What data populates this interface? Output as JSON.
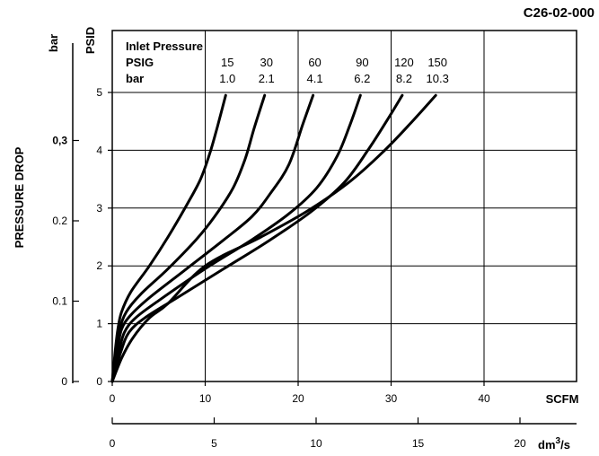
{
  "figure_code": "C26-02-000",
  "chart_data": {
    "type": "line",
    "xlabel": "SCFM",
    "xlim": [
      0,
      50
    ],
    "xticks": [
      0,
      10,
      20,
      30,
      40
    ],
    "x2label": "dm³/s",
    "x2_label_base": "dm",
    "x2_label_sup": "3",
    "x2_label_tail": "/s",
    "x2ticks": [
      0,
      5,
      10,
      15,
      20
    ],
    "ylabel": "PSID",
    "ylim": [
      0,
      5.5
    ],
    "yticks": [
      0,
      1,
      2,
      3,
      4,
      5
    ],
    "y2label": "bar",
    "y2ticks": [
      {
        "label": "0",
        "value": 0
      },
      {
        "label": "0.1",
        "value": 0.1
      },
      {
        "label": "0.2",
        "value": 0.2
      },
      {
        "label": "0,3",
        "value": 0.3
      }
    ],
    "axis_title": "PRESSURE DROP",
    "grid": true,
    "legend": {
      "title": "Inlet Pressure",
      "row1_label": "PSIG",
      "row2_label": "bar"
    },
    "series": [
      {
        "psig": "15",
        "bar": "1.0",
        "points": [
          [
            0,
            0
          ],
          [
            0.3,
            0.5
          ],
          [
            0.6,
            0.9
          ],
          [
            1,
            1.2
          ],
          [
            2,
            1.55
          ],
          [
            4,
            2
          ],
          [
            6,
            2.5
          ],
          [
            8,
            3.05
          ],
          [
            9.5,
            3.5
          ],
          [
            10.5,
            3.95
          ],
          [
            11.3,
            4.4
          ],
          [
            12.2,
            4.95
          ]
        ]
      },
      {
        "psig": "30",
        "bar": "2.1",
        "points": [
          [
            0,
            0
          ],
          [
            0.4,
            0.5
          ],
          [
            0.8,
            0.9
          ],
          [
            1.5,
            1.2
          ],
          [
            3,
            1.5
          ],
          [
            6,
            1.95
          ],
          [
            9,
            2.45
          ],
          [
            11,
            2.85
          ],
          [
            13,
            3.35
          ],
          [
            14.3,
            3.85
          ],
          [
            15.3,
            4.4
          ],
          [
            16.4,
            4.95
          ]
        ]
      },
      {
        "psig": "60",
        "bar": "4.1",
        "points": [
          [
            0,
            0
          ],
          [
            0.5,
            0.5
          ],
          [
            1,
            0.9
          ],
          [
            2,
            1.15
          ],
          [
            4,
            1.45
          ],
          [
            8,
            1.95
          ],
          [
            12,
            2.45
          ],
          [
            15,
            2.85
          ],
          [
            17,
            3.25
          ],
          [
            19,
            3.75
          ],
          [
            20.5,
            4.45
          ],
          [
            21.6,
            4.95
          ]
        ]
      },
      {
        "psig": "90",
        "bar": "6.2",
        "points": [
          [
            0,
            0
          ],
          [
            0.7,
            0.5
          ],
          [
            1.3,
            0.85
          ],
          [
            2.5,
            1.1
          ],
          [
            5,
            1.4
          ],
          [
            10,
            1.95
          ],
          [
            15,
            2.45
          ],
          [
            19,
            2.9
          ],
          [
            22,
            3.35
          ],
          [
            24.2,
            3.9
          ],
          [
            25.6,
            4.45
          ],
          [
            26.7,
            4.95
          ]
        ]
      },
      {
        "psig": "120",
        "bar": "8.2",
        "points": [
          [
            0,
            0
          ],
          [
            0.9,
            0.5
          ],
          [
            1.8,
            0.85
          ],
          [
            3.5,
            1.1
          ],
          [
            7,
            1.45
          ],
          [
            12,
            1.95
          ],
          [
            17,
            2.45
          ],
          [
            21.5,
            2.95
          ],
          [
            25,
            3.45
          ],
          [
            27.5,
            4.0
          ],
          [
            29.5,
            4.5
          ],
          [
            31.2,
            4.95
          ]
        ]
      },
      {
        "psig": "150",
        "bar": "10.3",
        "points": [
          [
            0,
            0
          ],
          [
            1,
            0.4
          ],
          [
            2.2,
            0.75
          ],
          [
            4,
            1.1
          ],
          [
            6,
            1.35
          ],
          [
            10,
            2.0
          ],
          [
            16,
            2.5
          ],
          [
            21,
            2.95
          ],
          [
            25.5,
            3.45
          ],
          [
            29,
            3.95
          ],
          [
            32,
            4.45
          ],
          [
            34.8,
            4.95
          ]
        ]
      }
    ]
  }
}
